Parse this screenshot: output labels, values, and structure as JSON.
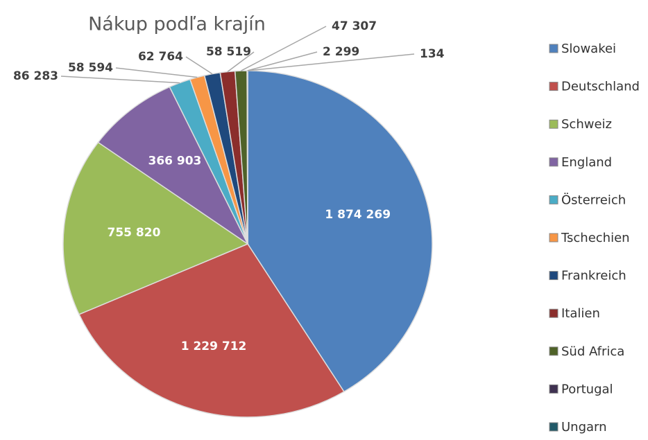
{
  "chart_data": {
    "type": "pie",
    "title": "Nákup podľa krajín",
    "categories": [
      "Slowakei",
      "Deutschland",
      "Schweiz",
      "England",
      "Österreich",
      "Tschechien",
      "Frankreich",
      "Italien",
      "Süd Africa",
      "Portugal",
      "Ungarn"
    ],
    "values": [
      1874269,
      1229712,
      755820,
      366903,
      86283,
      58594,
      62764,
      58519,
      47307,
      2299,
      134
    ],
    "value_labels": [
      "1 874 269",
      "1 229 712",
      "755 820",
      "366 903",
      "86 283",
      "58 594",
      "62 764",
      "58 519",
      "47 307",
      "2 299",
      "134"
    ],
    "colors": [
      "#4f81bd",
      "#c0504d",
      "#9bbb59",
      "#8064a2",
      "#4bacc6",
      "#f79646",
      "#1f497d",
      "#8b2e2c",
      "#4f6228",
      "#3f3151",
      "#215968"
    ],
    "legend": "right"
  }
}
